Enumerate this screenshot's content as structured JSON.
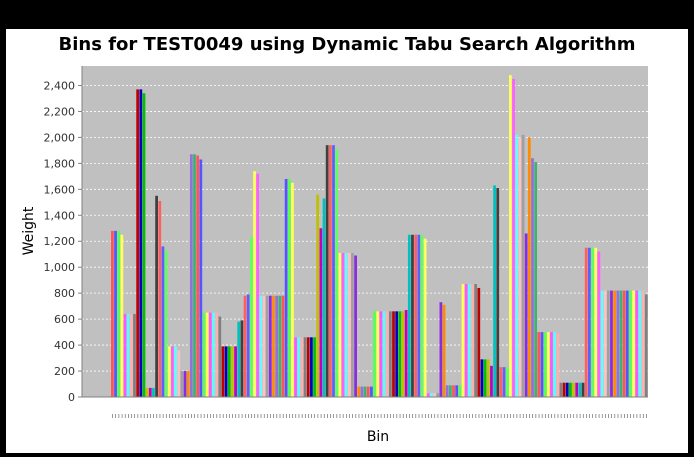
{
  "chart_data": {
    "type": "bar",
    "title": "Bins for TEST0049 using Dynamic Tabu Search Algorithm",
    "xlabel": "Bin",
    "ylabel": "Weight",
    "ylim": [
      0,
      2550
    ],
    "yticks": [
      0,
      200,
      400,
      600,
      800,
      1000,
      1200,
      1400,
      1600,
      1800,
      2000,
      2200,
      2400
    ],
    "ytick_labels": [
      "0",
      "200",
      "400",
      "600",
      "800",
      "1,000",
      "1,200",
      "1,400",
      "1,600",
      "1,800",
      "2,000",
      "2,200",
      "2,400"
    ],
    "grid": true,
    "plot_background": "#c0c0c0",
    "palette": [
      "#ff5555",
      "#5555ff",
      "#55ff55",
      "#ffff55",
      "#ff55ff",
      "#55ffff",
      "#ffafaf",
      "#808080",
      "#c00000",
      "#0000c0",
      "#00c000",
      "#c0c000",
      "#c000c0",
      "#00c0c0",
      "#404040",
      "#ff5f5f",
      "#5f5fff",
      "#5fff5f",
      "#ffff5f",
      "#ff5fff",
      "#5fffff",
      "#ffc0c0",
      "#a0a0a0",
      "#8a2be2",
      "#ff8c00",
      "#9370db",
      "#3cb371"
    ],
    "values": [
      1280,
      1280,
      1280,
      1250,
      640,
      640,
      640,
      640,
      2370,
      2370,
      2340,
      70,
      70,
      70,
      1550,
      1510,
      1160,
      1130,
      390,
      390,
      390,
      360,
      200,
      200,
      200,
      1870,
      1870,
      1860,
      1830,
      650,
      650,
      650,
      650,
      650,
      620,
      390,
      390,
      390,
      390,
      390,
      580,
      590,
      780,
      790,
      1230,
      1740,
      1720,
      780,
      780,
      780,
      780,
      780,
      780,
      780,
      780,
      1680,
      1680,
      1650,
      460,
      460,
      460,
      460,
      460,
      460,
      460,
      1560,
      1300,
      1530,
      1940,
      1940,
      1940,
      1910,
      1110,
      1110,
      1110,
      1110,
      1110,
      1090,
      80,
      80,
      80,
      80,
      80,
      660,
      660,
      660,
      660,
      660,
      660,
      660,
      660,
      660,
      660,
      670,
      1250,
      1250,
      1250,
      1250,
      1250,
      1220,
      30,
      30,
      30,
      30,
      730,
      710,
      90,
      90,
      90,
      90,
      90,
      870,
      870,
      870,
      870,
      870,
      840,
      290,
      290,
      290,
      240,
      1630,
      1610,
      230,
      230,
      230,
      2480,
      2450,
      2020,
      2000,
      2020,
      1260,
      2000,
      1840,
      1810,
      500,
      500,
      500,
      500,
      500,
      500,
      490,
      110,
      110,
      110,
      110,
      110,
      110,
      110,
      110,
      1150,
      1150,
      1150,
      1150,
      1120,
      820,
      820,
      820,
      820,
      820,
      820,
      820,
      820,
      820,
      820,
      820,
      820,
      820,
      820,
      790
    ]
  }
}
